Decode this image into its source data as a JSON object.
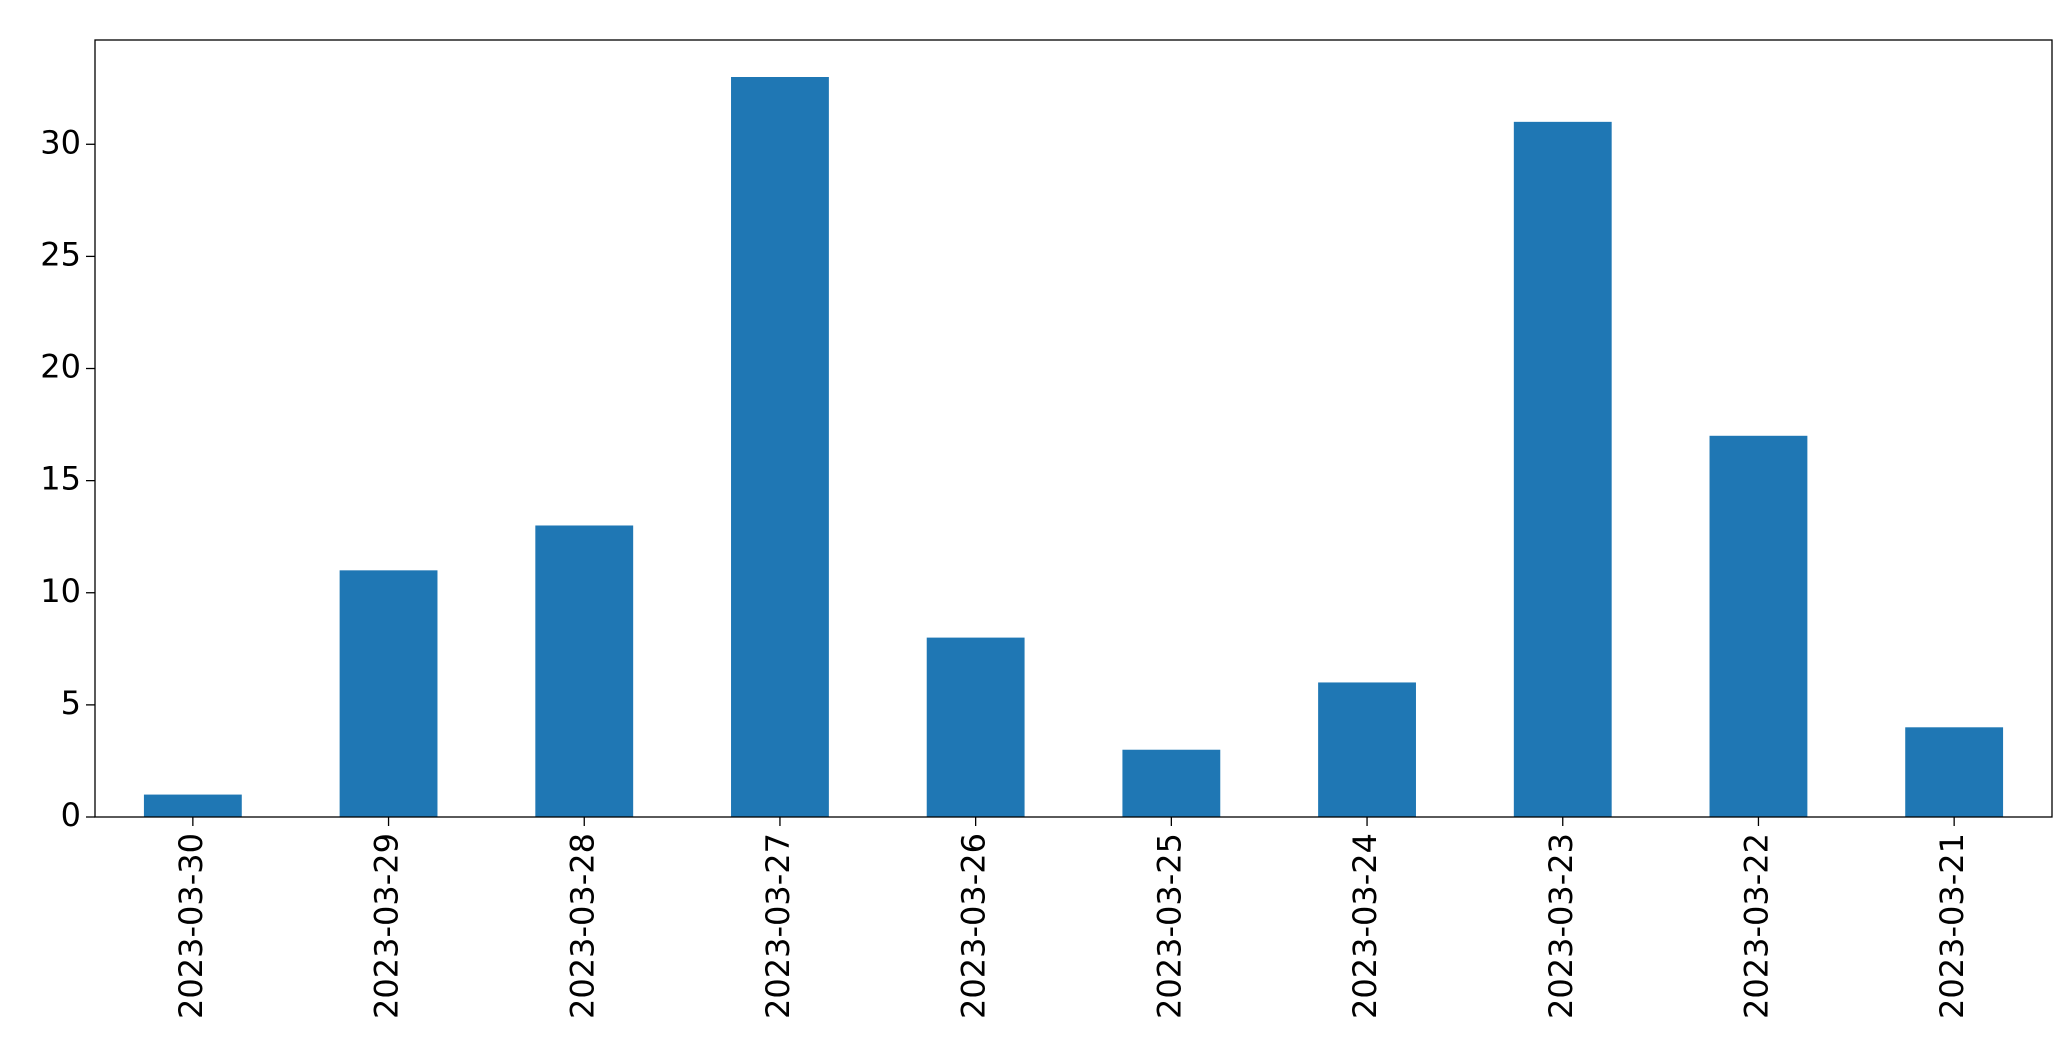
{
  "chart_data": {
    "type": "bar",
    "categories": [
      "2023-03-30",
      "2023-03-29",
      "2023-03-28",
      "2023-03-27",
      "2023-03-26",
      "2023-03-25",
      "2023-03-24",
      "2023-03-23",
      "2023-03-22",
      "2023-03-21"
    ],
    "values": [
      1,
      11,
      13,
      33,
      8,
      3,
      6,
      31,
      17,
      4
    ],
    "color": "#1f77b4",
    "ylim": [
      0,
      34.65
    ],
    "yticks": [
      0,
      5,
      10,
      15,
      20,
      25,
      30
    ],
    "grid": false
  }
}
